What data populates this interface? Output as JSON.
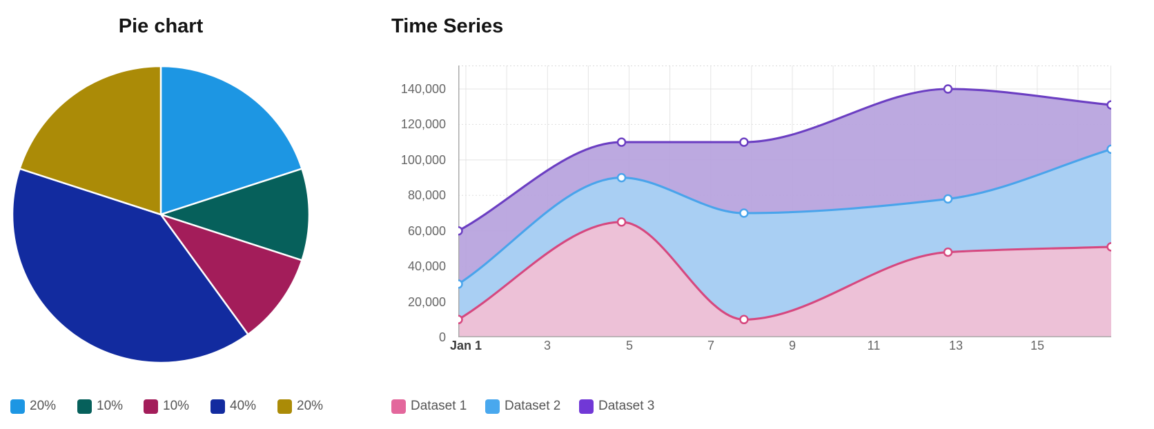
{
  "page": {
    "background": "#ffffff"
  },
  "chart_data": [
    {
      "type": "pie",
      "title": "Pie chart",
      "labels": [
        "20%",
        "10%",
        "10%",
        "40%",
        "20%"
      ],
      "values": [
        20,
        10,
        10,
        40,
        20
      ],
      "colors": [
        "#1d96e3",
        "#06605b",
        "#a31d5a",
        "#122b9f",
        "#ab8b07"
      ],
      "slice_border_color": "#ffffff",
      "legend_position": "bottom",
      "start_angle_deg": 0,
      "direction": "clockwise"
    },
    {
      "type": "area",
      "title": "Time Series",
      "x_days": [
        1,
        5,
        8,
        13,
        17
      ],
      "x_tick_days": [
        1,
        3,
        5,
        7,
        9,
        11,
        13,
        15
      ],
      "x_tick_labels": [
        "Jan 1",
        "3",
        "5",
        "7",
        "9",
        "11",
        "13",
        "15"
      ],
      "y_tick_values": [
        0,
        20000,
        40000,
        60000,
        80000,
        100000,
        120000,
        140000
      ],
      "y_tick_labels": [
        "0",
        "20,000",
        "40,000",
        "60,000",
        "80,000",
        "100,000",
        "120,000",
        "140,000"
      ],
      "xlim_days": [
        1,
        17
      ],
      "ylim": [
        0,
        153200
      ],
      "grid": true,
      "legend_position": "bottom",
      "curve": "monotone",
      "marker": {
        "fill": "#ffffff",
        "radius": 5.5,
        "stroke_width": 2.5
      },
      "series": [
        {
          "name": "Dataset 1",
          "values": [
            10000,
            65000,
            10000,
            48000,
            51000
          ],
          "line_color": "#d6487f",
          "fill_color": "#f2bfd4",
          "legend_color": "#e3679c"
        },
        {
          "name": "Dataset 2",
          "values": [
            30000,
            90000,
            70000,
            78000,
            106000
          ],
          "line_color": "#49a4eb",
          "fill_color": "#a8d2f4",
          "legend_color": "#49a8ee"
        },
        {
          "name": "Dataset 3",
          "values": [
            60000,
            110000,
            110000,
            140000,
            131000
          ],
          "line_color": "#6b3ec2",
          "fill_color": "#b7a2de",
          "legend_color": "#7138d6"
        }
      ]
    }
  ]
}
